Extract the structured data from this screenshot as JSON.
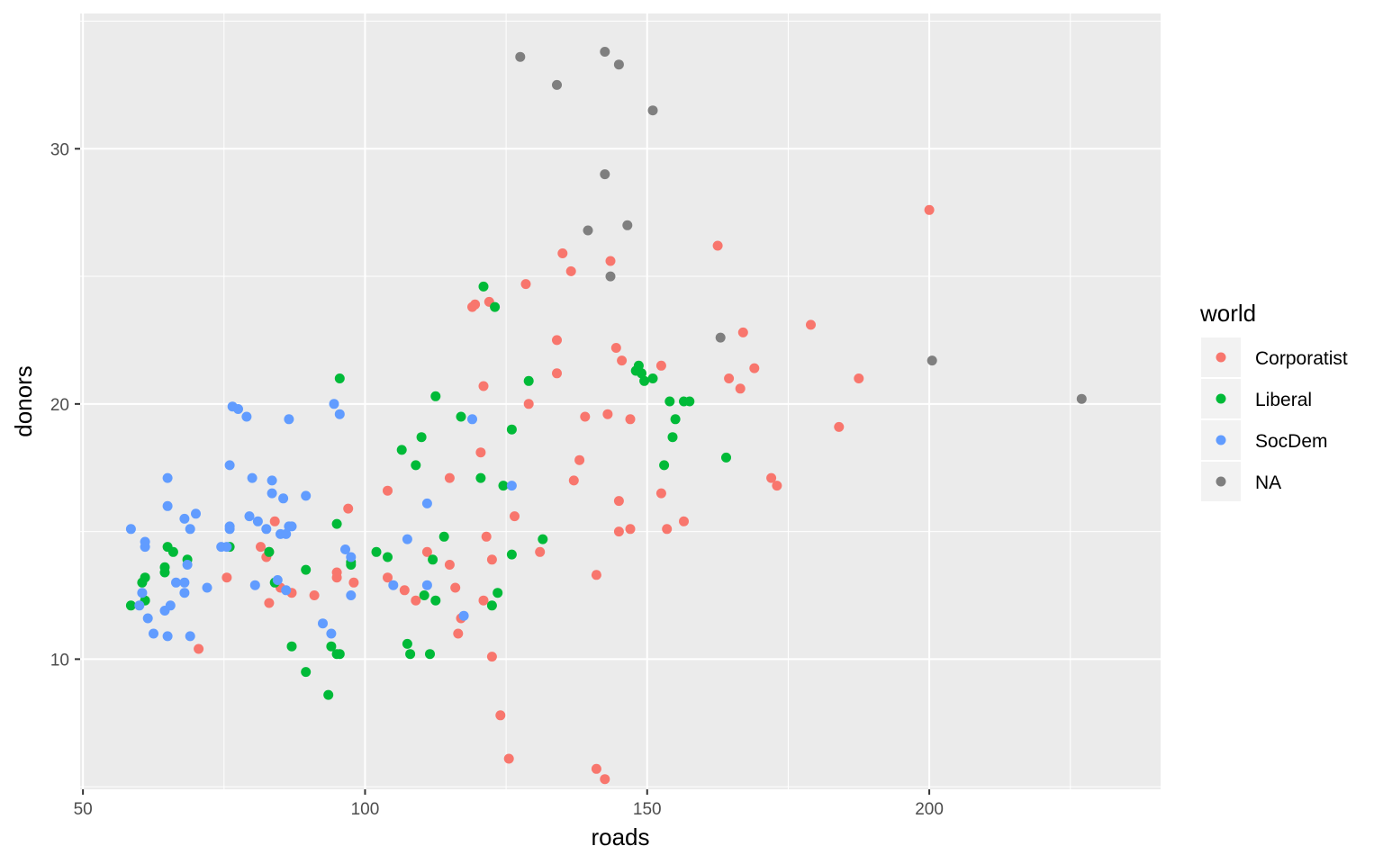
{
  "chart_data": {
    "type": "scatter",
    "title": "",
    "xlabel": "roads",
    "ylabel": "donors",
    "xlim": [
      49.5,
      241
    ],
    "ylim": [
      4.9,
      35.3
    ],
    "xticks": [
      50,
      100,
      150,
      200
    ],
    "yticks": [
      10,
      20,
      30
    ],
    "x_minor": [
      75,
      125,
      175,
      225
    ],
    "y_minor": [
      5,
      15,
      25,
      35
    ],
    "grid": true,
    "legend": {
      "title": "world",
      "position": "right"
    },
    "colors": {
      "Corporatist": "#F8766D",
      "Liberal": "#00BA38",
      "SocDem": "#619CFF",
      "NA": "#7F7F7F"
    },
    "series": [
      {
        "name": "Corporatist",
        "points": [
          [
            70.5,
            10.4
          ],
          [
            75.5,
            13.2
          ],
          [
            81.5,
            14.4
          ],
          [
            82.5,
            14.0
          ],
          [
            83.0,
            14.2
          ],
          [
            83.0,
            12.2
          ],
          [
            84.0,
            15.4
          ],
          [
            85.0,
            12.8
          ],
          [
            87.0,
            12.6
          ],
          [
            91.0,
            12.5
          ],
          [
            95.0,
            13.2
          ],
          [
            95.0,
            13.4
          ],
          [
            97.0,
            15.9
          ],
          [
            98.0,
            13.0
          ],
          [
            104.0,
            16.6
          ],
          [
            104.0,
            13.2
          ],
          [
            107.0,
            12.7
          ],
          [
            109.0,
            12.3
          ],
          [
            111.0,
            14.2
          ],
          [
            115.0,
            13.7
          ],
          [
            115.0,
            17.1
          ],
          [
            116.0,
            12.8
          ],
          [
            116.5,
            11.0
          ],
          [
            117.0,
            11.6
          ],
          [
            119.0,
            23.8
          ],
          [
            119.5,
            23.9
          ],
          [
            120.5,
            18.1
          ],
          [
            121.0,
            12.3
          ],
          [
            121.0,
            20.7
          ],
          [
            121.5,
            14.8
          ],
          [
            122.0,
            24.0
          ],
          [
            122.5,
            10.1
          ],
          [
            122.5,
            13.9
          ],
          [
            124.0,
            7.8
          ],
          [
            125.5,
            6.1
          ],
          [
            126.5,
            15.6
          ],
          [
            128.5,
            24.7
          ],
          [
            129.0,
            20.0
          ],
          [
            131.0,
            14.2
          ],
          [
            134.0,
            21.2
          ],
          [
            134.0,
            22.5
          ],
          [
            135.0,
            25.9
          ],
          [
            136.5,
            25.2
          ],
          [
            137.0,
            17.0
          ],
          [
            138.0,
            17.8
          ],
          [
            139.0,
            19.5
          ],
          [
            141.0,
            5.7
          ],
          [
            141.0,
            13.3
          ],
          [
            142.5,
            5.3
          ],
          [
            143.0,
            19.6
          ],
          [
            143.5,
            25.6
          ],
          [
            144.5,
            22.2
          ],
          [
            145.0,
            15.0
          ],
          [
            145.5,
            21.7
          ],
          [
            145.0,
            16.2
          ],
          [
            147.0,
            19.4
          ],
          [
            147.0,
            15.1
          ],
          [
            152.5,
            21.5
          ],
          [
            152.5,
            16.5
          ],
          [
            153.5,
            15.1
          ],
          [
            156.5,
            15.4
          ],
          [
            162.5,
            26.2
          ],
          [
            164.5,
            21.0
          ],
          [
            166.5,
            20.6
          ],
          [
            167.0,
            22.8
          ],
          [
            169.0,
            21.4
          ],
          [
            172.0,
            17.1
          ],
          [
            173.0,
            16.8
          ],
          [
            179.0,
            23.1
          ],
          [
            184.0,
            19.1
          ],
          [
            187.5,
            21.0
          ],
          [
            200.0,
            27.6
          ]
        ]
      },
      {
        "name": "Liberal",
        "points": [
          [
            58.5,
            12.1
          ],
          [
            60.5,
            13.0
          ],
          [
            61.0,
            13.2
          ],
          [
            61.0,
            12.3
          ],
          [
            64.5,
            13.4
          ],
          [
            64.5,
            13.6
          ],
          [
            65.0,
            14.4
          ],
          [
            66.0,
            14.2
          ],
          [
            68.5,
            13.9
          ],
          [
            76.0,
            14.4
          ],
          [
            83.0,
            14.2
          ],
          [
            84.0,
            13.0
          ],
          [
            87.0,
            10.5
          ],
          [
            89.5,
            9.5
          ],
          [
            89.5,
            13.5
          ],
          [
            93.5,
            8.6
          ],
          [
            94.0,
            10.5
          ],
          [
            95.0,
            10.2
          ],
          [
            95.0,
            15.3
          ],
          [
            95.5,
            21.0
          ],
          [
            95.5,
            10.2
          ],
          [
            97.5,
            13.7
          ],
          [
            97.5,
            13.8
          ],
          [
            102.0,
            14.2
          ],
          [
            104.0,
            14.0
          ],
          [
            106.5,
            18.2
          ],
          [
            107.5,
            10.6
          ],
          [
            108.0,
            10.2
          ],
          [
            109.0,
            17.6
          ],
          [
            110.0,
            18.7
          ],
          [
            110.5,
            12.5
          ],
          [
            111.5,
            10.2
          ],
          [
            112.0,
            13.9
          ],
          [
            112.5,
            20.3
          ],
          [
            112.5,
            12.3
          ],
          [
            114.0,
            14.8
          ],
          [
            117.0,
            19.5
          ],
          [
            120.5,
            17.1
          ],
          [
            121.0,
            24.6
          ],
          [
            122.5,
            12.1
          ],
          [
            123.0,
            23.8
          ],
          [
            123.5,
            12.6
          ],
          [
            124.5,
            16.8
          ],
          [
            126.0,
            19.0
          ],
          [
            126.0,
            14.1
          ],
          [
            129.0,
            20.9
          ],
          [
            131.5,
            14.7
          ],
          [
            148.0,
            21.3
          ],
          [
            148.5,
            21.5
          ],
          [
            149.0,
            21.2
          ],
          [
            149.5,
            20.9
          ],
          [
            151.0,
            21.0
          ],
          [
            153.0,
            17.6
          ],
          [
            154.0,
            20.1
          ],
          [
            154.5,
            18.7
          ],
          [
            155.0,
            19.4
          ],
          [
            156.5,
            20.1
          ],
          [
            157.5,
            20.1
          ],
          [
            164.0,
            17.9
          ]
        ]
      },
      {
        "name": "SocDem",
        "points": [
          [
            58.5,
            15.1
          ],
          [
            60.0,
            12.1
          ],
          [
            60.5,
            12.6
          ],
          [
            61.0,
            14.4
          ],
          [
            61.0,
            14.6
          ],
          [
            61.5,
            11.6
          ],
          [
            62.5,
            11.0
          ],
          [
            64.5,
            11.9
          ],
          [
            65.0,
            17.1
          ],
          [
            65.0,
            16.0
          ],
          [
            65.0,
            10.9
          ],
          [
            65.5,
            12.1
          ],
          [
            66.5,
            13.0
          ],
          [
            68.0,
            13.0
          ],
          [
            68.0,
            12.6
          ],
          [
            68.0,
            15.5
          ],
          [
            68.5,
            13.7
          ],
          [
            69.0,
            15.1
          ],
          [
            69.0,
            10.9
          ],
          [
            70.0,
            15.7
          ],
          [
            72.0,
            12.8
          ],
          [
            74.5,
            14.4
          ],
          [
            75.5,
            14.4
          ],
          [
            76.0,
            15.1
          ],
          [
            76.0,
            15.2
          ],
          [
            76.0,
            17.6
          ],
          [
            76.5,
            19.9
          ],
          [
            77.5,
            19.8
          ],
          [
            79.0,
            19.5
          ],
          [
            79.5,
            15.6
          ],
          [
            80.0,
            17.1
          ],
          [
            80.5,
            12.9
          ],
          [
            81.0,
            15.4
          ],
          [
            82.5,
            15.1
          ],
          [
            83.5,
            17.0
          ],
          [
            83.5,
            16.5
          ],
          [
            84.5,
            13.1
          ],
          [
            85.0,
            14.9
          ],
          [
            85.5,
            16.3
          ],
          [
            86.0,
            14.9
          ],
          [
            86.0,
            12.7
          ],
          [
            86.5,
            15.2
          ],
          [
            86.5,
            19.4
          ],
          [
            87.0,
            15.2
          ],
          [
            89.5,
            16.4
          ],
          [
            92.5,
            11.4
          ],
          [
            94.0,
            11.0
          ],
          [
            94.5,
            20.0
          ],
          [
            95.5,
            19.6
          ],
          [
            96.5,
            14.3
          ],
          [
            97.5,
            12.5
          ],
          [
            97.5,
            14.0
          ],
          [
            105.0,
            12.9
          ],
          [
            107.5,
            14.7
          ],
          [
            111.0,
            12.9
          ],
          [
            111.0,
            16.1
          ],
          [
            117.5,
            11.7
          ],
          [
            119.0,
            19.4
          ],
          [
            126.0,
            16.8
          ]
        ]
      },
      {
        "name": "NA",
        "points": [
          [
            127.5,
            33.6
          ],
          [
            134.0,
            32.5
          ],
          [
            139.5,
            26.8
          ],
          [
            142.5,
            33.8
          ],
          [
            142.5,
            29.0
          ],
          [
            143.5,
            25.0
          ],
          [
            145.0,
            33.3
          ],
          [
            146.5,
            27.0
          ],
          [
            151.0,
            31.5
          ],
          [
            163.0,
            22.6
          ],
          [
            200.5,
            21.7
          ],
          [
            227.0,
            20.2
          ]
        ]
      }
    ]
  }
}
